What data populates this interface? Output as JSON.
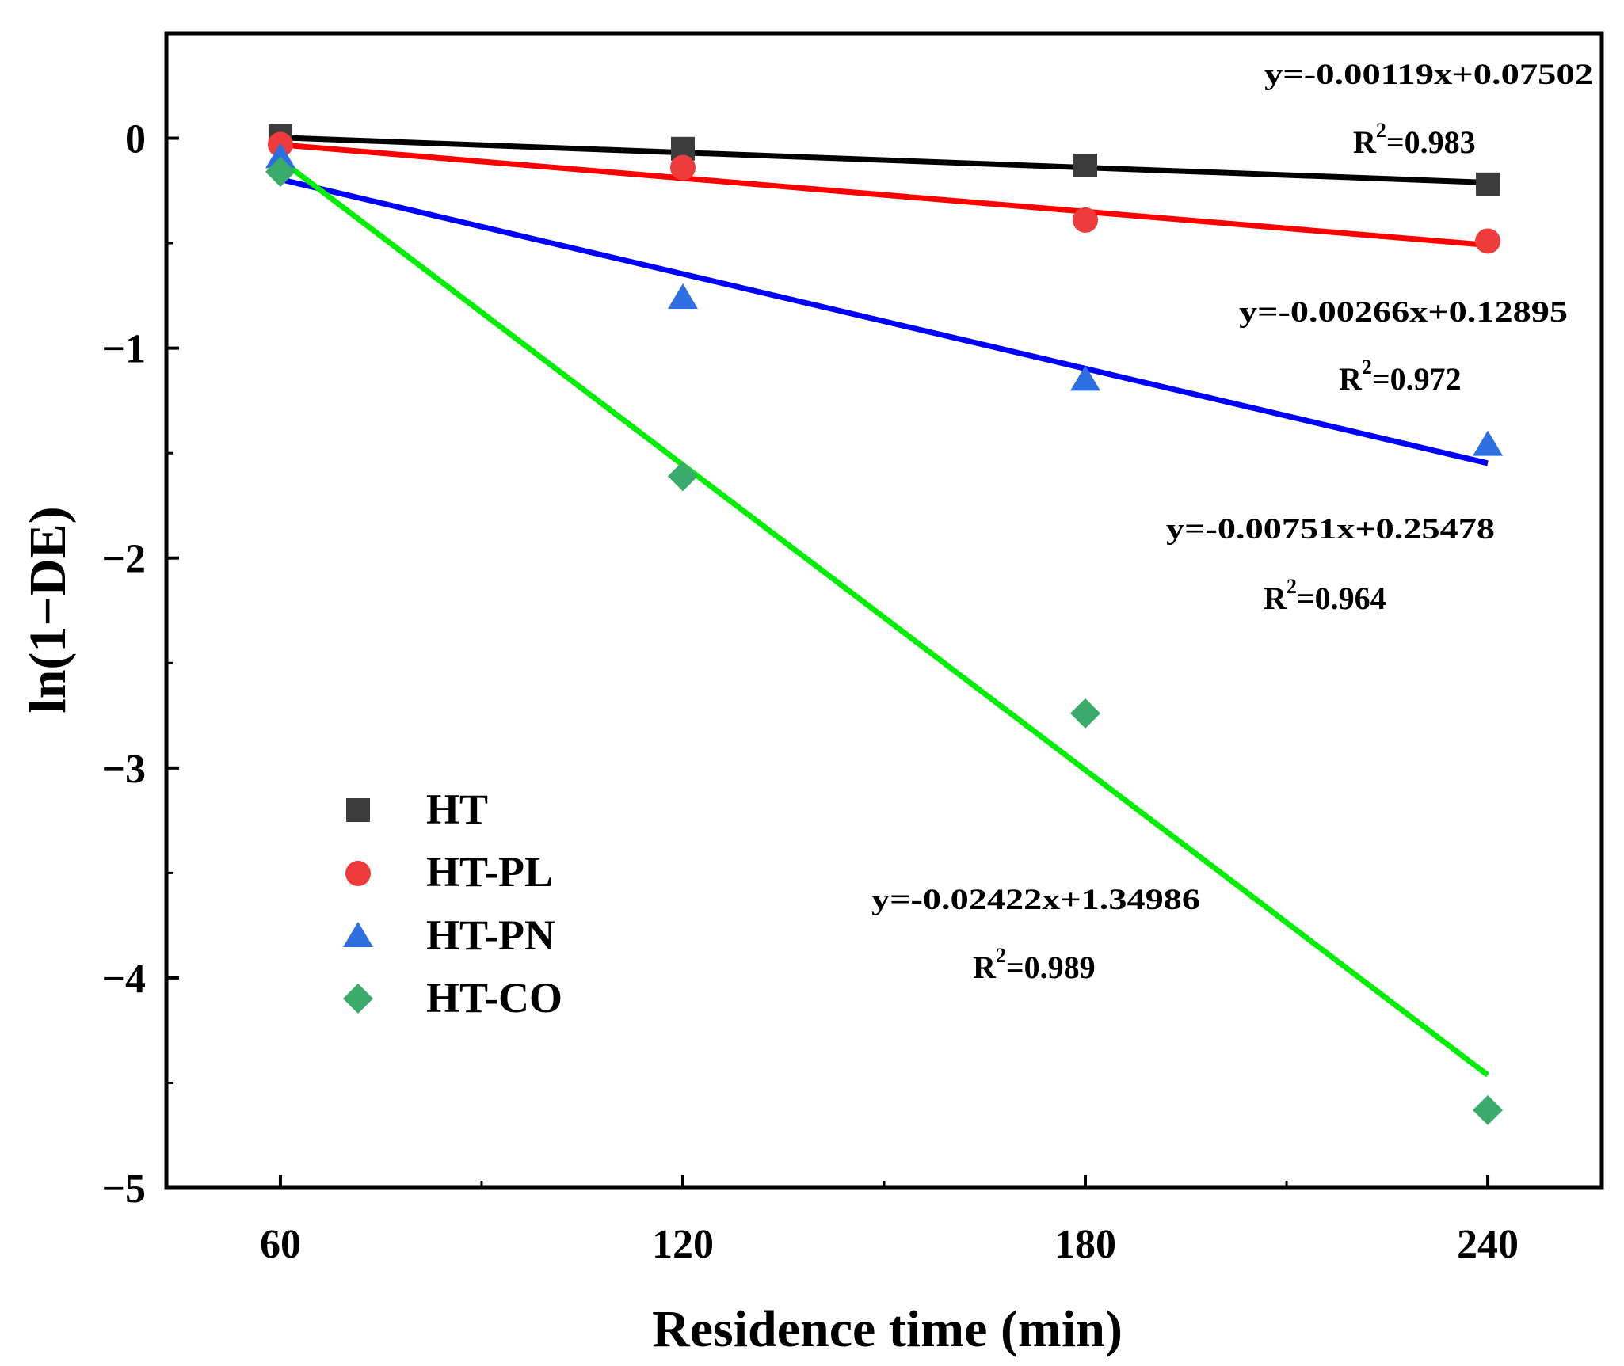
{
  "chart_data": {
    "type": "scatter",
    "title": "",
    "xlabel": "Residence time (min)",
    "ylabel": "ln(1−DE)",
    "xlim": [
      43,
      257
    ],
    "ylim": [
      -5,
      0.5
    ],
    "xticks": [
      60,
      120,
      180,
      240
    ],
    "yticks": [
      0,
      -1,
      -2,
      -3,
      -4,
      -5
    ],
    "ytick_labels": [
      "0",
      "−1",
      "−2",
      "−3",
      "−4",
      "−5"
    ],
    "x": [
      60,
      120,
      180,
      240
    ],
    "legend_position": "center-left",
    "grid": false,
    "series": [
      {
        "name": "HT",
        "values": [
          0.01,
          -0.05,
          -0.13,
          -0.22
        ],
        "marker": "square",
        "marker_color": "#3c3c3c",
        "line_color": "#000000",
        "fit": {
          "x": [
            60,
            240
          ],
          "y": [
            0.003,
            -0.211
          ]
        },
        "equation": "y=-0.00119x+0.07502",
        "r2_label": "R",
        "r2_value": "=0.983"
      },
      {
        "name": "HT-PL",
        "values": [
          -0.03,
          -0.14,
          -0.39,
          -0.49
        ],
        "marker": "circle",
        "marker_color": "#ee3b3b",
        "line_color": "#ff0000",
        "fit": {
          "x": [
            60,
            240
          ],
          "y": [
            -0.031,
            -0.509
          ]
        },
        "equation": "y=-0.00266x+0.12895",
        "r2_label": "R",
        "r2_value": "=0.972"
      },
      {
        "name": "HT-PN",
        "values": [
          -0.09,
          -0.76,
          -1.15,
          -1.46
        ],
        "marker": "triangle",
        "marker_color": "#2d6fe0",
        "line_color": "#0000ff",
        "fit": {
          "x": [
            60,
            240
          ],
          "y": [
            -0.196,
            -1.548
          ]
        },
        "equation": "y=-0.00751x+0.25478",
        "r2_label": "R",
        "r2_value": "=0.964"
      },
      {
        "name": "HT-CO",
        "values": [
          -0.16,
          -1.61,
          -2.74,
          -4.63
        ],
        "marker": "diamond",
        "marker_color": "#3aab6a",
        "line_color": "#00ee00",
        "fit": {
          "x": [
            60,
            240
          ],
          "y": [
            -0.103,
            -4.463
          ]
        },
        "equation": "y=-0.02422x+1.34986",
        "r2_label": "R",
        "r2_value": "=0.989"
      }
    ],
    "r2_superscript": "2"
  }
}
